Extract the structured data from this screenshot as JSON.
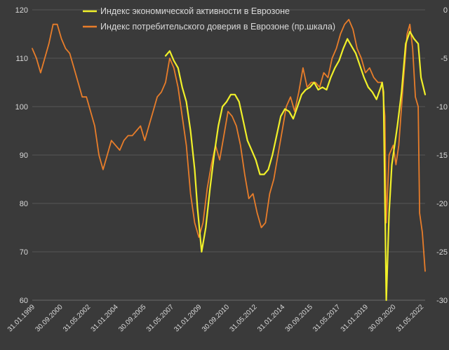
{
  "chart_data": {
    "type": "line",
    "legend": {
      "placement": "top-center"
    },
    "grid": {
      "horizontal": true,
      "vertical": false
    },
    "left_axis": {
      "min": 60,
      "max": 120,
      "ticks": [
        "60",
        "70",
        "80",
        "90",
        "100",
        "110",
        "120"
      ]
    },
    "right_axis": {
      "min": -30,
      "max": 0,
      "ticks": [
        "-30",
        "-25",
        "-20",
        "-15",
        "-10",
        "-5",
        "0"
      ]
    },
    "x_axis": {
      "start": "1999-01",
      "end": "2022-08",
      "tick_labels": [
        "31.01.1999",
        "30.09.2000",
        "31.05.2002",
        "31.01.2004",
        "30.09.2005",
        "31.05.2007",
        "31.01.2009",
        "30.09.2010",
        "31.05.2012",
        "31.01.2014",
        "30.09.2015",
        "31.05.2017",
        "31.01.2019",
        "30.09.2020",
        "31.05.2022"
      ]
    },
    "series": [
      {
        "name": "Индекс экономической активности в Еврозоне",
        "axis": "left",
        "color": "#f0f029",
        "points": [
          [
            "2007-01",
            110.5
          ],
          [
            "2007-04",
            111.5
          ],
          [
            "2007-07",
            109.5
          ],
          [
            "2007-10",
            108
          ],
          [
            "2008-01",
            104
          ],
          [
            "2008-04",
            101
          ],
          [
            "2008-07",
            95
          ],
          [
            "2008-10",
            87
          ],
          [
            "2008-12",
            79
          ],
          [
            "2009-03",
            70
          ],
          [
            "2009-06",
            75
          ],
          [
            "2009-09",
            83
          ],
          [
            "2009-12",
            90
          ],
          [
            "2010-03",
            96
          ],
          [
            "2010-06",
            100
          ],
          [
            "2010-09",
            101
          ],
          [
            "2010-12",
            102.5
          ],
          [
            "2011-03",
            102.5
          ],
          [
            "2011-06",
            101
          ],
          [
            "2011-09",
            97
          ],
          [
            "2011-12",
            93
          ],
          [
            "2012-03",
            91
          ],
          [
            "2012-06",
            89
          ],
          [
            "2012-09",
            86
          ],
          [
            "2012-12",
            86
          ],
          [
            "2013-03",
            87
          ],
          [
            "2013-06",
            90
          ],
          [
            "2013-09",
            94
          ],
          [
            "2013-12",
            98
          ],
          [
            "2014-03",
            99.5
          ],
          [
            "2014-06",
            99
          ],
          [
            "2014-09",
            97.5
          ],
          [
            "2014-12",
            100
          ],
          [
            "2015-03",
            102.5
          ],
          [
            "2015-06",
            103.5
          ],
          [
            "2015-09",
            104
          ],
          [
            "2015-12",
            105
          ],
          [
            "2016-03",
            103.5
          ],
          [
            "2016-06",
            104
          ],
          [
            "2016-09",
            103.5
          ],
          [
            "2016-12",
            106
          ],
          [
            "2017-03",
            108
          ],
          [
            "2017-06",
            109.5
          ],
          [
            "2017-09",
            112
          ],
          [
            "2017-12",
            114
          ],
          [
            "2018-03",
            112.5
          ],
          [
            "2018-06",
            111
          ],
          [
            "2018-09",
            108.5
          ],
          [
            "2018-12",
            106
          ],
          [
            "2019-03",
            104
          ],
          [
            "2019-06",
            103
          ],
          [
            "2019-09",
            101.5
          ],
          [
            "2019-12",
            104
          ],
          [
            "2020-01",
            105
          ],
          [
            "2020-02",
            103
          ],
          [
            "2020-04",
            60
          ],
          [
            "2020-06",
            78
          ],
          [
            "2020-08",
            88
          ],
          [
            "2020-10",
            92
          ],
          [
            "2020-12",
            96
          ],
          [
            "2021-03",
            103
          ],
          [
            "2021-06",
            113
          ],
          [
            "2021-09",
            115.5
          ],
          [
            "2021-12",
            114
          ],
          [
            "2022-03",
            113
          ],
          [
            "2022-05",
            106
          ],
          [
            "2022-08",
            102.5
          ]
        ]
      },
      {
        "name": "Индекс потребительского доверия в Еврозоне (пр.шкала)",
        "axis": "right",
        "color": "#e87d2a",
        "points": [
          [
            "1999-01",
            -4
          ],
          [
            "1999-04",
            -5
          ],
          [
            "1999-07",
            -6.5
          ],
          [
            "1999-10",
            -5
          ],
          [
            "2000-01",
            -3.5
          ],
          [
            "2000-04",
            -1.5
          ],
          [
            "2000-07",
            -1.5
          ],
          [
            "2000-10",
            -3
          ],
          [
            "2001-01",
            -4
          ],
          [
            "2001-04",
            -4.5
          ],
          [
            "2001-07",
            -6
          ],
          [
            "2001-10",
            -7.5
          ],
          [
            "2002-01",
            -9
          ],
          [
            "2002-04",
            -9
          ],
          [
            "2002-07",
            -10.5
          ],
          [
            "2002-10",
            -12
          ],
          [
            "2003-01",
            -15
          ],
          [
            "2003-04",
            -16.5
          ],
          [
            "2003-07",
            -15
          ],
          [
            "2003-10",
            -13.5
          ],
          [
            "2004-01",
            -14
          ],
          [
            "2004-04",
            -14.5
          ],
          [
            "2004-07",
            -13.5
          ],
          [
            "2004-10",
            -13
          ],
          [
            "2005-01",
            -13
          ],
          [
            "2005-04",
            -12.5
          ],
          [
            "2005-07",
            -12
          ],
          [
            "2005-10",
            -13.5
          ],
          [
            "2006-01",
            -12
          ],
          [
            "2006-04",
            -10.5
          ],
          [
            "2006-07",
            -9
          ],
          [
            "2006-10",
            -8.5
          ],
          [
            "2007-01",
            -7.5
          ],
          [
            "2007-04",
            -5
          ],
          [
            "2007-07",
            -6
          ],
          [
            "2007-10",
            -8
          ],
          [
            "2008-01",
            -11
          ],
          [
            "2008-04",
            -14
          ],
          [
            "2008-07",
            -19
          ],
          [
            "2008-10",
            -22
          ],
          [
            "2009-01",
            -23.5
          ],
          [
            "2009-04",
            -22
          ],
          [
            "2009-07",
            -18.5
          ],
          [
            "2009-10",
            -16
          ],
          [
            "2010-01",
            -14
          ],
          [
            "2010-04",
            -15.5
          ],
          [
            "2010-07",
            -13
          ],
          [
            "2010-10",
            -10.5
          ],
          [
            "2011-01",
            -11
          ],
          [
            "2011-04",
            -12
          ],
          [
            "2011-07",
            -14
          ],
          [
            "2011-10",
            -17
          ],
          [
            "2012-01",
            -19.5
          ],
          [
            "2012-04",
            -19
          ],
          [
            "2012-07",
            -21
          ],
          [
            "2012-10",
            -22.5
          ],
          [
            "2013-01",
            -22
          ],
          [
            "2013-04",
            -19
          ],
          [
            "2013-07",
            -17.5
          ],
          [
            "2013-10",
            -15
          ],
          [
            "2014-01",
            -12.5
          ],
          [
            "2014-04",
            -10
          ],
          [
            "2014-07",
            -9
          ],
          [
            "2014-10",
            -10.5
          ],
          [
            "2015-01",
            -8.5
          ],
          [
            "2015-04",
            -6
          ],
          [
            "2015-07",
            -8
          ],
          [
            "2015-10",
            -7.5
          ],
          [
            "2016-01",
            -7.5
          ],
          [
            "2016-04",
            -8
          ],
          [
            "2016-07",
            -6.5
          ],
          [
            "2016-10",
            -7
          ],
          [
            "2017-01",
            -5
          ],
          [
            "2017-04",
            -4
          ],
          [
            "2017-07",
            -2.5
          ],
          [
            "2017-10",
            -1.5
          ],
          [
            "2018-01",
            -1
          ],
          [
            "2018-04",
            -2
          ],
          [
            "2018-07",
            -4
          ],
          [
            "2018-10",
            -5
          ],
          [
            "2019-01",
            -6.5
          ],
          [
            "2019-04",
            -6
          ],
          [
            "2019-07",
            -7
          ],
          [
            "2019-10",
            -7.5
          ],
          [
            "2020-01",
            -7.5
          ],
          [
            "2020-03",
            -11
          ],
          [
            "2020-04",
            -22
          ],
          [
            "2020-06",
            -15
          ],
          [
            "2020-09",
            -14
          ],
          [
            "2020-11",
            -16
          ],
          [
            "2021-01",
            -14
          ],
          [
            "2021-04",
            -8
          ],
          [
            "2021-07",
            -2.5
          ],
          [
            "2021-09",
            -1.5
          ],
          [
            "2021-11",
            -4
          ],
          [
            "2022-01",
            -9
          ],
          [
            "2022-03",
            -10
          ],
          [
            "2022-04",
            -21
          ],
          [
            "2022-06",
            -23
          ],
          [
            "2022-08",
            -27
          ]
        ]
      }
    ]
  }
}
